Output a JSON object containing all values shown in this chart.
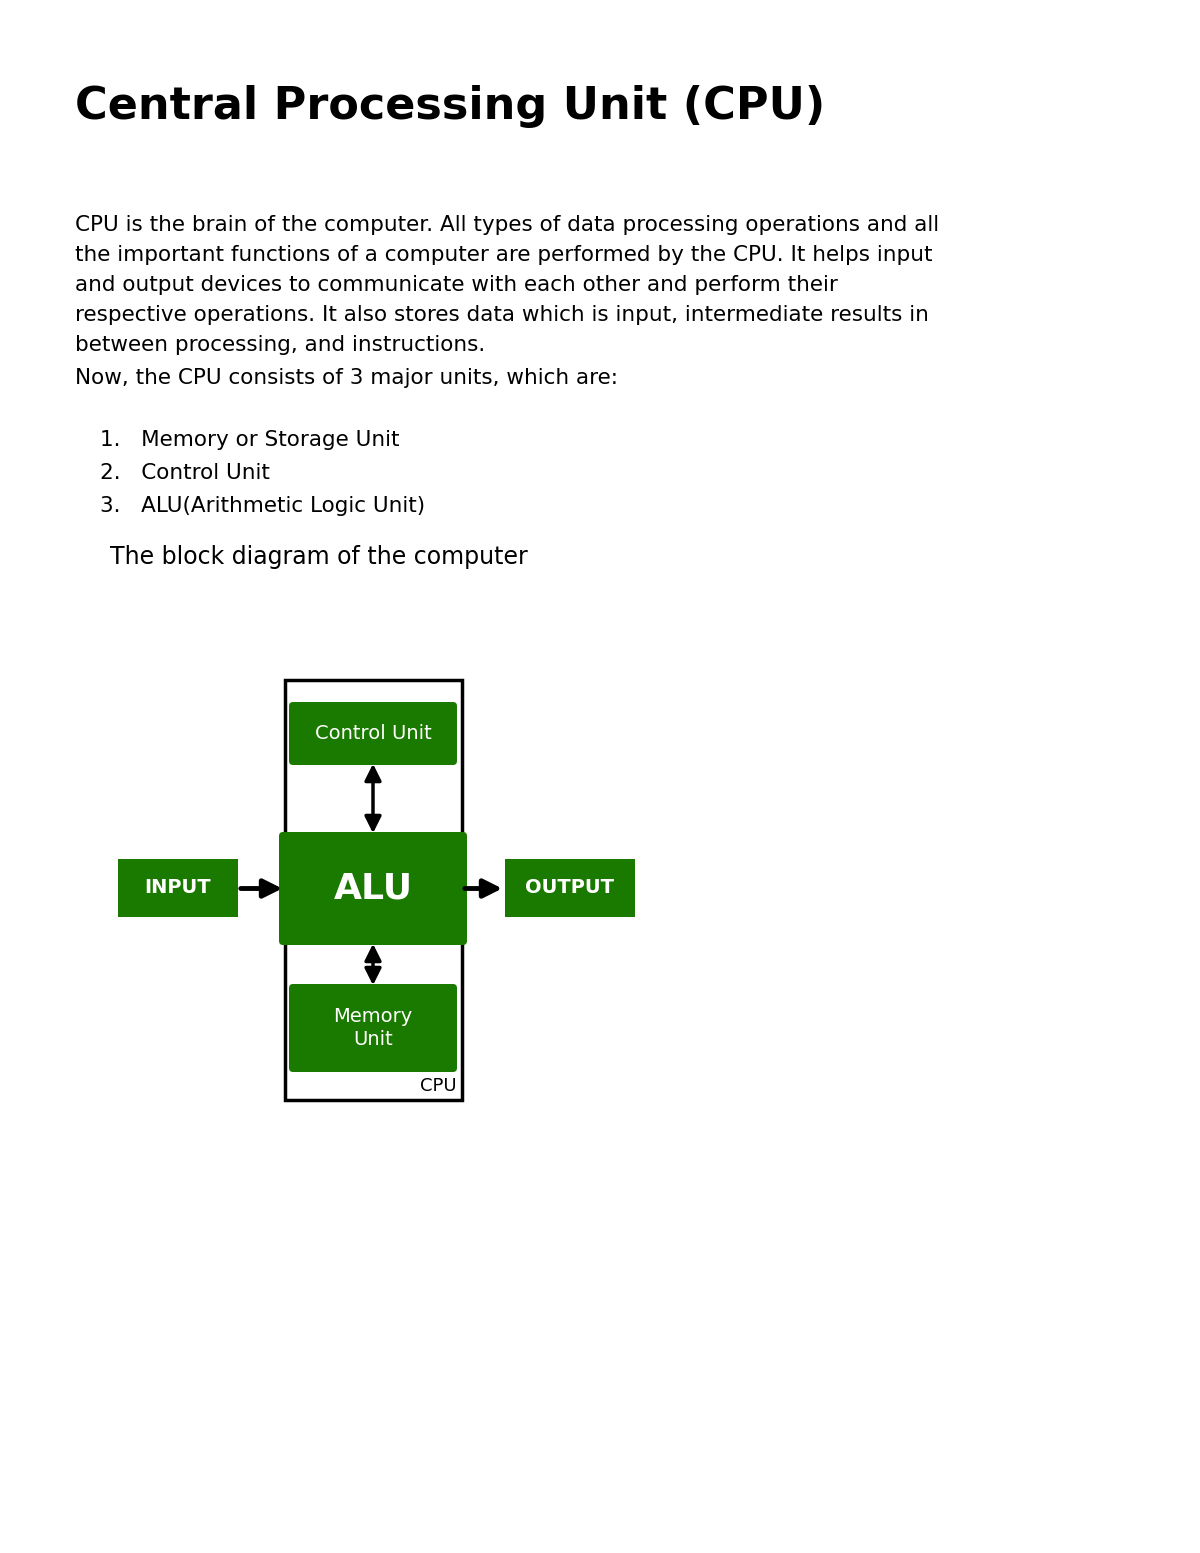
{
  "title": "Central Processing Unit (CPU)",
  "title_fontsize": 32,
  "body_text_lines": [
    "CPU is the brain of the computer. All types of data processing operations and all",
    "the important functions of a computer are performed by the CPU. It helps input",
    "and output devices to communicate with each other and perform their",
    "respective operations. It also stores data which is input, intermediate results in",
    "between processing, and instructions."
  ],
  "body_fontsize": 15.5,
  "intro_text": "Now, the CPU consists of 3 major units, which are:",
  "list_items": [
    "Memory or Storage Unit",
    "Control Unit",
    "ALU(Arithmetic Logic Unit)"
  ],
  "list_fontsize": 15.5,
  "subheading": "The block diagram of the computer",
  "subheading_fontsize": 17,
  "green_color": "#1a7a00",
  "white_text": "#ffffff",
  "black_text": "#000000",
  "background_color": "#ffffff",
  "box_border_color": "#000000",
  "arrow_color": "#000000",
  "control_unit_label": "Control Unit",
  "alu_label": "ALU",
  "memory_unit_label": "Memory\nUnit",
  "input_label": "INPUT",
  "output_label": "OUTPUT",
  "cpu_label": "CPU"
}
